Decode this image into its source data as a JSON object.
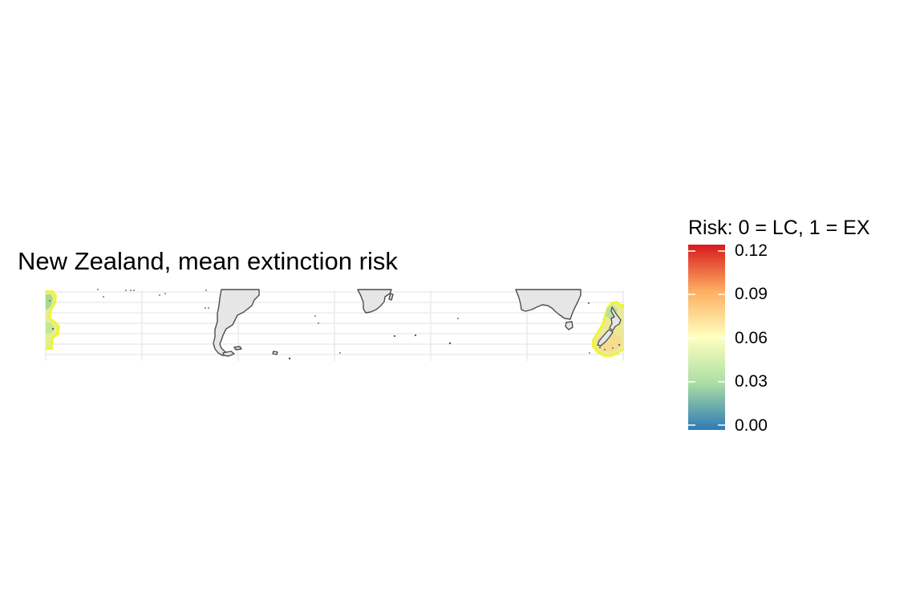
{
  "title": "New Zealand, mean extinction risk",
  "legend": {
    "title": "Risk: 0 = LC, 1 = EX",
    "ticks": [
      "0.12",
      "0.09",
      "0.06",
      "0.03",
      "0.00"
    ],
    "range": [
      0,
      0.12
    ],
    "palette": [
      "#2c7bb6",
      "#abdda4",
      "#ffffbf",
      "#fdae61",
      "#d7191c"
    ],
    "placement": "right"
  },
  "map": {
    "land_color": "#e6e6e6",
    "coast_color": "#4d4d4d",
    "grid_color": "#ebebeb",
    "grid": true,
    "highlight_halo_color": "#eef535"
  }
}
